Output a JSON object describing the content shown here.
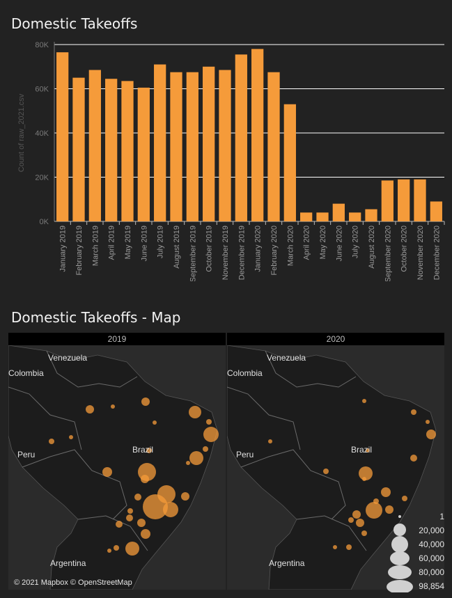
{
  "chart_title": "Domestic Takeoffs",
  "map_title": "Domestic Takeoffs - Map",
  "colors": {
    "bar": "#f59b3a",
    "background": "#222222",
    "grid": "#ffffff",
    "bubble": "#f59b3a"
  },
  "chart_data": {
    "type": "bar",
    "ylabel": "Count of raw_2021.csv",
    "ylim": [
      0,
      80000
    ],
    "yticks": [
      "0K",
      "20K",
      "40K",
      "60K",
      "80K"
    ],
    "grid": true,
    "categories": [
      "January 2019",
      "February 2019",
      "March 2019",
      "April 2019",
      "May 2019",
      "June 2019",
      "July 2019",
      "August 2019",
      "September 2019",
      "October 2019",
      "November 2019",
      "December 2019",
      "January 2020",
      "February 2020",
      "March 2020",
      "April 2020",
      "May 2020",
      "June 2020",
      "July 2020",
      "August 2020",
      "September 2020",
      "October 2020",
      "November 2020",
      "December 2020"
    ],
    "values": [
      76500,
      65000,
      68500,
      64500,
      63500,
      60500,
      71000,
      67500,
      67500,
      70000,
      68500,
      75500,
      78000,
      67500,
      53000,
      4000,
      4000,
      8000,
      4000,
      5500,
      18500,
      19000,
      19000,
      9000
    ]
  },
  "maps": [
    {
      "year": "2019",
      "labels": {
        "venezuela": "Venezuela",
        "colombia": "Colombia",
        "brazil": "Brazil",
        "peru": "Peru",
        "argentina": "Argentina"
      }
    },
    {
      "year": "2020",
      "labels": {
        "venezuela": "Venezuela",
        "colombia": "Colombia",
        "brazil": "Brazil",
        "peru": "Peru",
        "argentina": "Argentina"
      }
    }
  ],
  "credit": "© 2021 Mapbox © OpenStreetMap",
  "size_legend": [
    "1",
    "20,000",
    "40,000",
    "60,000",
    "80,000",
    "98,854"
  ]
}
